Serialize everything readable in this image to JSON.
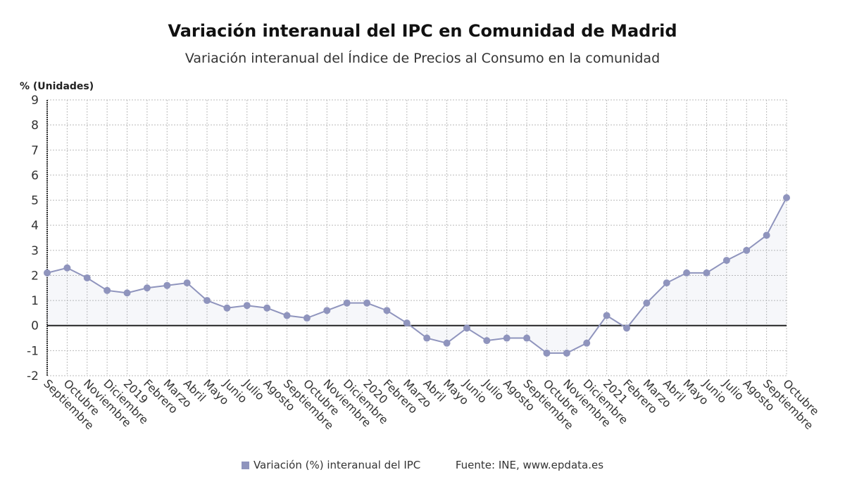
{
  "chart_data": {
    "type": "line",
    "title": "Variación interanual del IPC en Comunidad de Madrid",
    "subtitle": "Variación interanual del Índice de Precios al Consumo en la comunidad",
    "ylabel": "% (Unidades)",
    "xlabel": "",
    "ylim": [
      -2,
      9
    ],
    "yticks": [
      -2,
      -1,
      0,
      1,
      2,
      3,
      4,
      5,
      6,
      7,
      8,
      9
    ],
    "grid": true,
    "legend_position": "bottom",
    "categories": [
      "Septiembre",
      "Octubre",
      "Noviembre",
      "Diciembre",
      "2019",
      "Febrero",
      "Marzo",
      "Abril",
      "Mayo",
      "Junio",
      "Julio",
      "Agosto",
      "Septiembre",
      "Octubre",
      "Noviembre",
      "Diciembre",
      "2020",
      "Febrero",
      "Marzo",
      "Abril",
      "Mayo",
      "Junio",
      "Julio",
      "Agosto",
      "Septiembre",
      "Octubre",
      "Noviembre",
      "Diciembre",
      "2021",
      "Febrero",
      "Marzo",
      "Abril",
      "Mayo",
      "Junio",
      "Julio",
      "Agosto",
      "Septiembre",
      "Octubre"
    ],
    "series": [
      {
        "name": "Variación (%) interanual del IPC",
        "color": "#8f94bd",
        "values": [
          2.1,
          2.3,
          1.9,
          1.4,
          1.3,
          1.5,
          1.6,
          1.7,
          1.0,
          0.7,
          0.8,
          0.7,
          0.4,
          0.3,
          0.6,
          0.9,
          0.9,
          0.6,
          0.1,
          -0.5,
          -0.7,
          -0.1,
          -0.6,
          -0.5,
          -0.5,
          -1.1,
          -1.1,
          -0.7,
          0.4,
          -0.1,
          0.9,
          1.7,
          2.1,
          2.1,
          2.6,
          3.0,
          3.6,
          5.1
        ]
      }
    ],
    "source": "Fuente: INE, www.epdata.es"
  }
}
